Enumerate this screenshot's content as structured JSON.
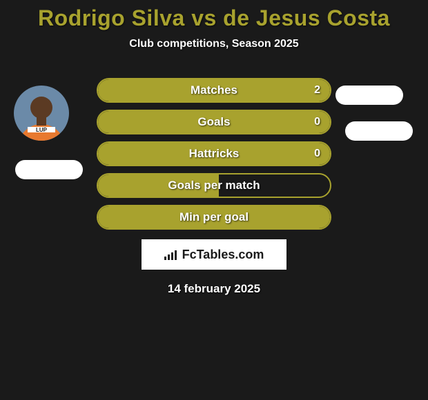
{
  "title": "Rodrigo Silva vs de Jesus Costa",
  "subtitle": "Club competitions, Season 2025",
  "date": "14 february 2025",
  "brand": "FcTables.com",
  "colors": {
    "accent": "#a8a22e",
    "background": "#1a1a1a",
    "text": "#ffffff",
    "pill": "#ffffff",
    "brand_bg": "#ffffff",
    "brand_text": "#1a1a1a"
  },
  "stats": [
    {
      "label": "Matches",
      "value": "2",
      "fill_pct": 100
    },
    {
      "label": "Goals",
      "value": "0",
      "fill_pct": 100
    },
    {
      "label": "Hattricks",
      "value": "0",
      "fill_pct": 100
    },
    {
      "label": "Goals per match",
      "value": "",
      "fill_pct": 52
    },
    {
      "label": "Min per goal",
      "value": "",
      "fill_pct": 100
    }
  ],
  "avatar_left": {
    "bg": "#6b8aa8",
    "shirt": "#e8792f",
    "skin": "#5b3a23"
  }
}
